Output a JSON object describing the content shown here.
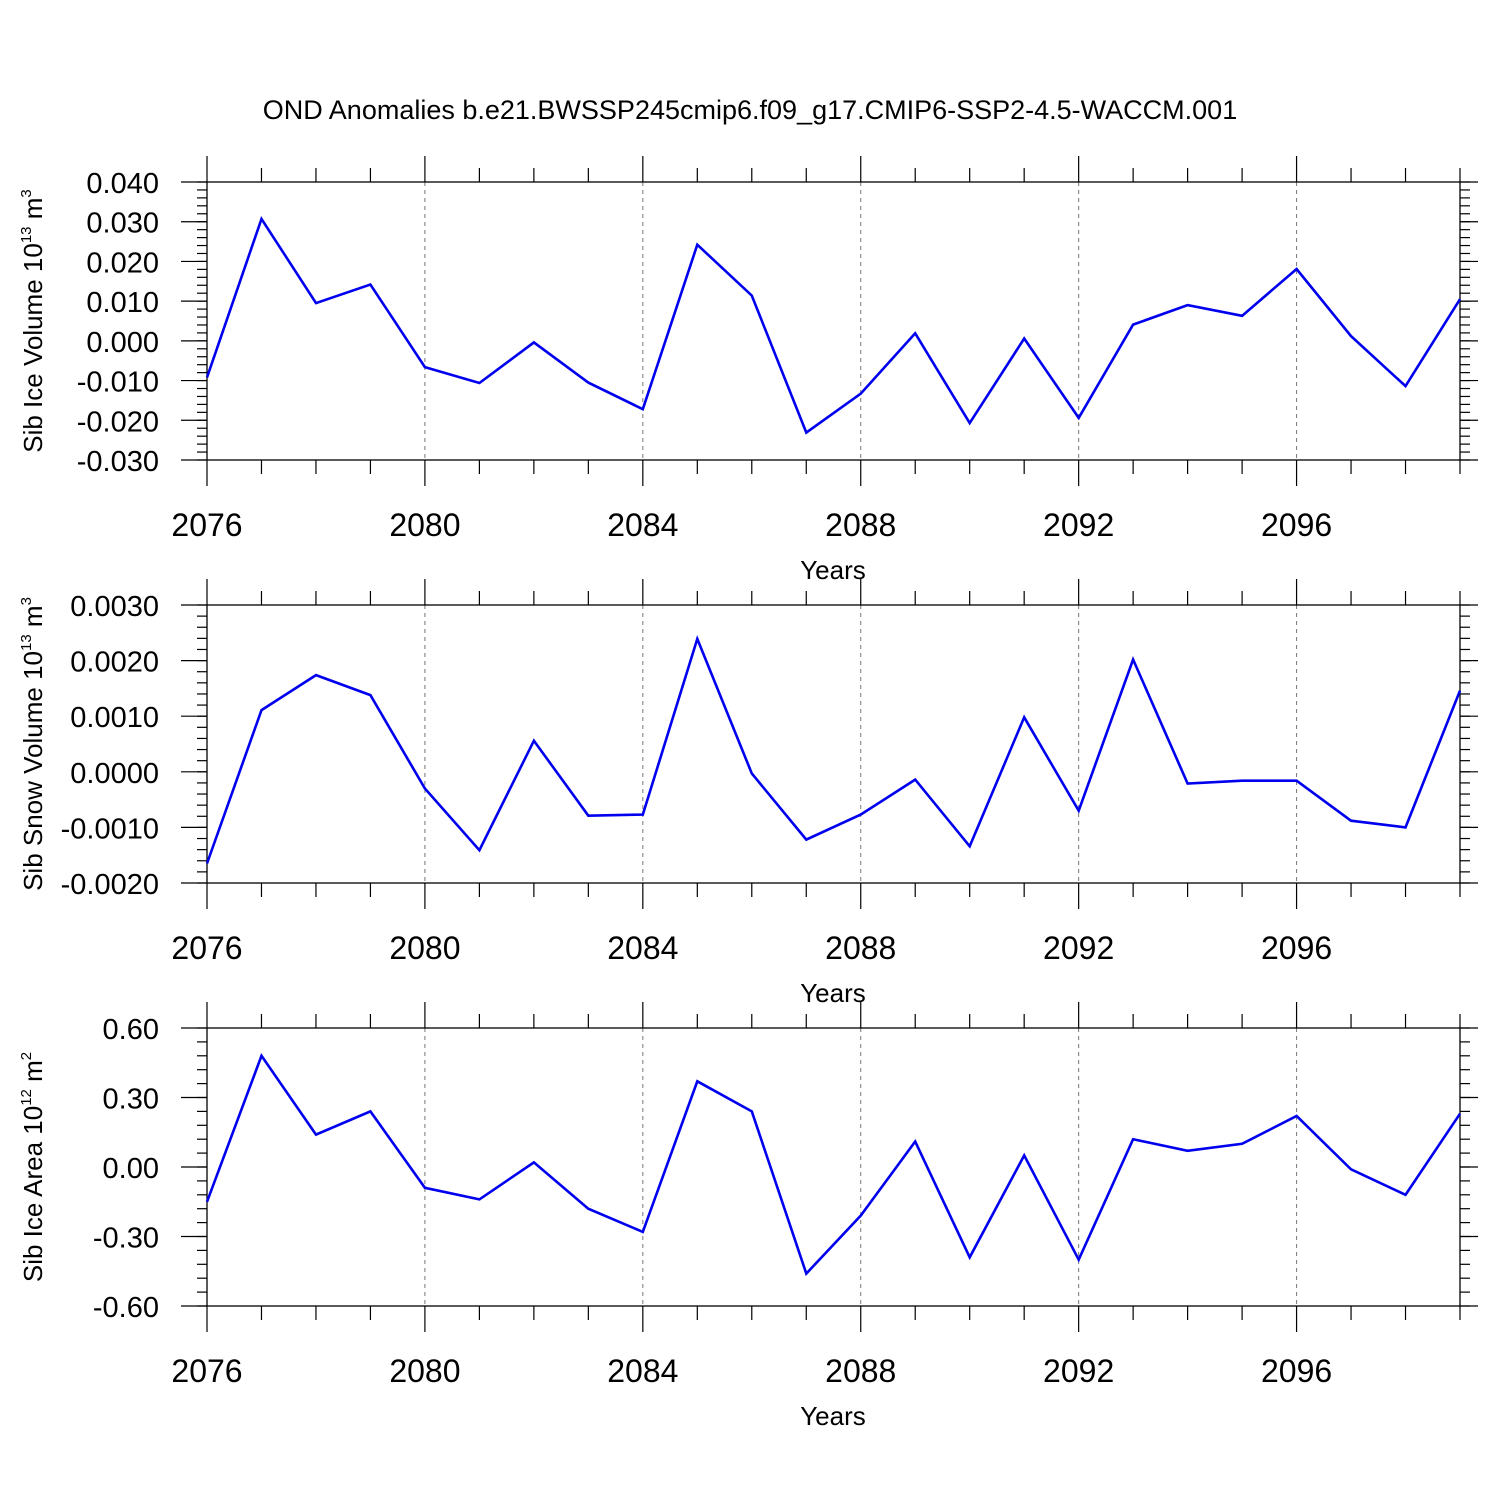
{
  "title": "OND Anomalies b.e21.BWSSP245cmip6.f09_g17.CMIP6-SSP2-4.5-WACCM.001",
  "colors": {
    "line": "#0000ee",
    "axis": "#000000",
    "grid": "#777777"
  },
  "chart_data": [
    {
      "type": "line",
      "id": "ice-volume",
      "ylabel": {
        "text": "Sib Ice Volume 10",
        "exp": "13",
        "unit": " m",
        "unit_exp": "3"
      },
      "xlabel": "Years",
      "x": [
        2076,
        2077,
        2078,
        2079,
        2080,
        2081,
        2082,
        2083,
        2084,
        2085,
        2086,
        2087,
        2088,
        2089,
        2090,
        2091,
        2092,
        2093,
        2094,
        2095,
        2096,
        2097,
        2098,
        2099
      ],
      "values": [
        -0.0092,
        0.0307,
        0.0095,
        0.0142,
        -0.0066,
        -0.0106,
        -0.0004,
        -0.0105,
        -0.0172,
        0.0242,
        0.0114,
        -0.0231,
        -0.0133,
        0.0019,
        -0.0207,
        0.0006,
        -0.0194,
        0.0041,
        0.009,
        0.0063,
        0.0181,
        0.0012,
        -0.0114,
        0.0105
      ],
      "xlim": [
        2076,
        2099
      ],
      "ylim": [
        -0.03,
        0.04
      ],
      "yticks": [
        -0.03,
        -0.02,
        -0.01,
        0.0,
        0.01,
        0.02,
        0.03,
        0.04
      ],
      "ytick_labels": [
        "-0.030",
        "-0.020",
        "-0.010",
        "0.000",
        "0.010",
        "0.020",
        "0.030",
        "0.040"
      ],
      "yminor_step": 0.002,
      "xticks": [
        2076,
        2080,
        2084,
        2088,
        2092,
        2096
      ],
      "xtick_labels": [
        "2076",
        "2080",
        "2084",
        "2088",
        "2092",
        "2096"
      ],
      "grid": "vertical-dashed"
    },
    {
      "type": "line",
      "id": "snow-volume",
      "ylabel": {
        "text": "Sib Snow Volume 10",
        "exp": "13",
        "unit": " m",
        "unit_exp": "3"
      },
      "xlabel": "Years",
      "x": [
        2076,
        2077,
        2078,
        2079,
        2080,
        2081,
        2082,
        2083,
        2084,
        2085,
        2086,
        2087,
        2088,
        2089,
        2090,
        2091,
        2092,
        2093,
        2094,
        2095,
        2096,
        2097,
        2098,
        2099
      ],
      "values": [
        -0.00165,
        0.00111,
        0.00174,
        0.00138,
        -0.0003,
        -0.00141,
        0.00056,
        -0.00079,
        -0.00077,
        0.00239,
        -3e-05,
        -0.00122,
        -0.00077,
        -0.00014,
        -0.00134,
        0.00098,
        -0.0007,
        0.00202,
        -0.00021,
        -0.00016,
        -0.00016,
        -0.00088,
        -0.001,
        0.00146
      ],
      "xlim": [
        2076,
        2099
      ],
      "ylim": [
        -0.002,
        0.003
      ],
      "yticks": [
        -0.002,
        -0.001,
        0.0,
        0.001,
        0.002,
        0.003
      ],
      "ytick_labels": [
        "-0.0020",
        "-0.0010",
        "0.0000",
        "0.0010",
        "0.0020",
        "0.0030"
      ],
      "yminor_step": 0.0002,
      "xticks": [
        2076,
        2080,
        2084,
        2088,
        2092,
        2096
      ],
      "xtick_labels": [
        "2076",
        "2080",
        "2084",
        "2088",
        "2092",
        "2096"
      ],
      "grid": "vertical-dashed"
    },
    {
      "type": "line",
      "id": "ice-area",
      "ylabel": {
        "text": "Sib Ice Area 10",
        "exp": "12",
        "unit": " m",
        "unit_exp": "2"
      },
      "xlabel": "Years",
      "x": [
        2076,
        2077,
        2078,
        2079,
        2080,
        2081,
        2082,
        2083,
        2084,
        2085,
        2086,
        2087,
        2088,
        2089,
        2090,
        2091,
        2092,
        2093,
        2094,
        2095,
        2096,
        2097,
        2098,
        2099
      ],
      "values": [
        -0.15,
        0.48,
        0.14,
        0.24,
        -0.09,
        -0.14,
        0.02,
        -0.18,
        -0.28,
        0.37,
        0.24,
        -0.46,
        -0.21,
        0.11,
        -0.39,
        0.05,
        -0.4,
        0.12,
        0.07,
        0.1,
        0.22,
        -0.01,
        -0.12,
        0.23
      ],
      "xlim": [
        2076,
        2099
      ],
      "ylim": [
        -0.6,
        0.6
      ],
      "yticks": [
        -0.6,
        -0.3,
        0.0,
        0.3,
        0.6
      ],
      "ytick_labels": [
        "-0.60",
        "-0.30",
        "0.00",
        "0.30",
        "0.60"
      ],
      "yminor_step": 0.06,
      "xticks": [
        2076,
        2080,
        2084,
        2088,
        2092,
        2096
      ],
      "xtick_labels": [
        "2076",
        "2080",
        "2084",
        "2088",
        "2092",
        "2096"
      ],
      "grid": "vertical-dashed"
    }
  ]
}
